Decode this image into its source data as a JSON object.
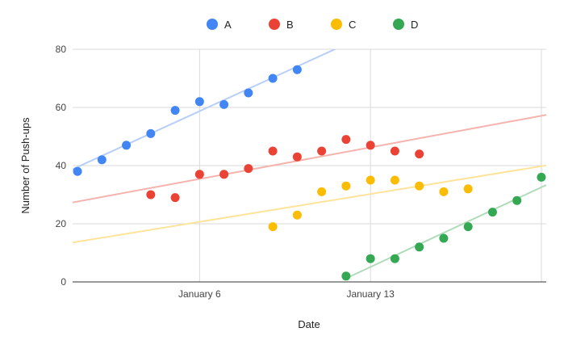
{
  "chart_data": {
    "type": "scatter",
    "title": "",
    "xlabel": "Date",
    "ylabel": "Number of Push-ups",
    "x_type": "date",
    "xlim": [
      "2024-01-01",
      "2024-01-20"
    ],
    "ylim": [
      0,
      80
    ],
    "y_ticks": [
      0,
      20,
      40,
      60,
      80
    ],
    "x_ticks": [
      {
        "date": "2024-01-06",
        "label": "January 6"
      },
      {
        "date": "2024-01-13",
        "label": "January 13"
      }
    ],
    "grid": true,
    "legend_position": "top-center",
    "trendlines": true,
    "series": [
      {
        "name": "A",
        "color": "#4285f4",
        "trend_color": "#b7cff8",
        "points": [
          {
            "x": "2024-01-01",
            "y": 38
          },
          {
            "x": "2024-01-02",
            "y": 42
          },
          {
            "x": "2024-01-03",
            "y": 47
          },
          {
            "x": "2024-01-04",
            "y": 51
          },
          {
            "x": "2024-01-05",
            "y": 59
          },
          {
            "x": "2024-01-06",
            "y": 62
          },
          {
            "x": "2024-01-07",
            "y": 61
          },
          {
            "x": "2024-01-08",
            "y": 65
          },
          {
            "x": "2024-01-09",
            "y": 70
          },
          {
            "x": "2024-01-10",
            "y": 73
          }
        ]
      },
      {
        "name": "B",
        "color": "#ea4335",
        "trend_color": "#f5b3ad",
        "points": [
          {
            "x": "2024-01-04",
            "y": 30
          },
          {
            "x": "2024-01-05",
            "y": 29
          },
          {
            "x": "2024-01-06",
            "y": 37
          },
          {
            "x": "2024-01-07",
            "y": 37
          },
          {
            "x": "2024-01-08",
            "y": 39
          },
          {
            "x": "2024-01-09",
            "y": 45
          },
          {
            "x": "2024-01-10",
            "y": 43
          },
          {
            "x": "2024-01-11",
            "y": 45
          },
          {
            "x": "2024-01-12",
            "y": 49
          },
          {
            "x": "2024-01-13",
            "y": 47
          },
          {
            "x": "2024-01-14",
            "y": 45
          },
          {
            "x": "2024-01-15",
            "y": 44
          }
        ]
      },
      {
        "name": "C",
        "color": "#fbbc04",
        "trend_color": "#fde49a",
        "points": [
          {
            "x": "2024-01-09",
            "y": 19
          },
          {
            "x": "2024-01-10",
            "y": 23
          },
          {
            "x": "2024-01-11",
            "y": 31
          },
          {
            "x": "2024-01-12",
            "y": 33
          },
          {
            "x": "2024-01-13",
            "y": 35
          },
          {
            "x": "2024-01-14",
            "y": 35
          },
          {
            "x": "2024-01-15",
            "y": 33
          },
          {
            "x": "2024-01-16",
            "y": 31
          },
          {
            "x": "2024-01-17",
            "y": 32
          }
        ]
      },
      {
        "name": "D",
        "color": "#34a853",
        "trend_color": "#b0dcb9",
        "points": [
          {
            "x": "2024-01-12",
            "y": 2
          },
          {
            "x": "2024-01-13",
            "y": 8
          },
          {
            "x": "2024-01-14",
            "y": 8
          },
          {
            "x": "2024-01-15",
            "y": 12
          },
          {
            "x": "2024-01-16",
            "y": 15
          },
          {
            "x": "2024-01-17",
            "y": 19
          },
          {
            "x": "2024-01-18",
            "y": 24
          },
          {
            "x": "2024-01-19",
            "y": 28
          },
          {
            "x": "2024-01-20",
            "y": 36
          }
        ]
      }
    ]
  }
}
